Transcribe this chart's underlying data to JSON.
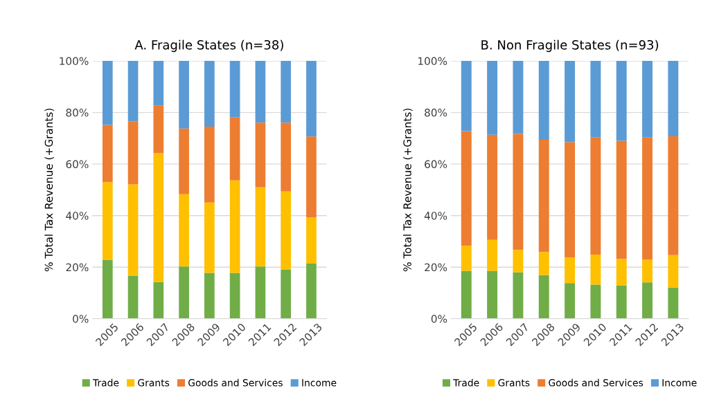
{
  "chart_data": [
    {
      "type": "bar",
      "stacked": true,
      "title": "A. Fragile States (n=38)",
      "ylabel": "% Total Tax Revenue (+Grants)",
      "categories": [
        "2005",
        "2006",
        "2007",
        "2008",
        "2009",
        "2010",
        "2011",
        "2012",
        "2013"
      ],
      "series": [
        {
          "name": "Trade",
          "color": "#70ad47",
          "values": [
            22.9,
            16.7,
            14.2,
            20.3,
            17.8,
            17.8,
            20.3,
            19.1,
            21.5
          ]
        },
        {
          "name": "Grants",
          "color": "#ffc000",
          "values": [
            30.1,
            35.4,
            50.0,
            28.0,
            27.3,
            35.9,
            30.7,
            30.3,
            17.9
          ]
        },
        {
          "name": "Goods and Services",
          "color": "#ed7d31",
          "values": [
            22.2,
            24.5,
            18.6,
            25.5,
            29.4,
            24.4,
            25.1,
            26.7,
            31.3
          ]
        },
        {
          "name": "Income",
          "color": "#5b9bd5",
          "values": [
            24.8,
            23.4,
            17.2,
            26.2,
            25.5,
            21.9,
            23.9,
            23.9,
            29.3
          ]
        }
      ],
      "ylim": [
        0,
        100
      ],
      "yticks": [
        {
          "value": 0,
          "label": "0%"
        },
        {
          "value": 20,
          "label": "20%"
        },
        {
          "value": 40,
          "label": "40%"
        },
        {
          "value": 60,
          "label": "60%"
        },
        {
          "value": 80,
          "label": "80%"
        },
        {
          "value": 100,
          "label": "100%"
        }
      ],
      "grid": "y",
      "legend": "bottom"
    },
    {
      "type": "bar",
      "stacked": true,
      "title": "B. Non Fragile States (n=93)",
      "ylabel": "% Total Tax Revenue (+Grants)",
      "categories": [
        "2005",
        "2006",
        "2007",
        "2008",
        "2009",
        "2010",
        "2011",
        "2012",
        "2013"
      ],
      "series": [
        {
          "name": "Trade",
          "color": "#70ad47",
          "values": [
            18.6,
            18.6,
            18.0,
            16.9,
            13.8,
            13.2,
            12.9,
            14.1,
            12.1
          ]
        },
        {
          "name": "Grants",
          "color": "#ffc000",
          "values": [
            9.7,
            12.0,
            8.7,
            9.0,
            10.0,
            11.7,
            10.3,
            8.8,
            12.6
          ]
        },
        {
          "name": "Goods and Services",
          "color": "#ed7d31",
          "values": [
            44.5,
            40.8,
            45.0,
            43.5,
            44.7,
            45.4,
            45.8,
            47.4,
            46.1
          ]
        },
        {
          "name": "Income",
          "color": "#5b9bd5",
          "values": [
            27.2,
            28.6,
            28.3,
            30.6,
            31.5,
            29.7,
            31.0,
            29.7,
            29.2
          ]
        }
      ],
      "ylim": [
        0,
        100
      ],
      "yticks": [
        {
          "value": 0,
          "label": "0%"
        },
        {
          "value": 20,
          "label": "20%"
        },
        {
          "value": 40,
          "label": "40%"
        },
        {
          "value": 60,
          "label": "60%"
        },
        {
          "value": 80,
          "label": "80%"
        },
        {
          "value": 100,
          "label": "100%"
        }
      ],
      "grid": "y",
      "legend": "bottom"
    }
  ]
}
